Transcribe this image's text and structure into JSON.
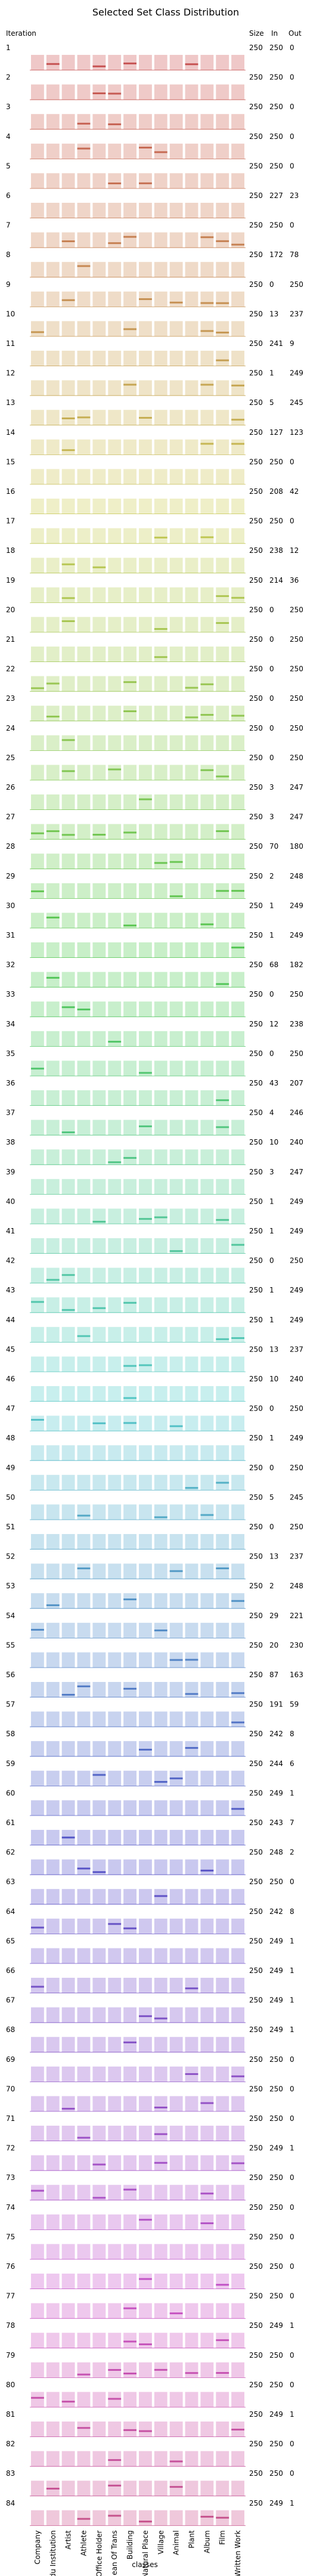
{
  "chart_data": {
    "type": "bar",
    "title": "Selected Set Class Distribution",
    "ylabel": "Iteration",
    "xlabel": "classes",
    "col_headers": [
      "Size",
      "In",
      "Out"
    ],
    "categories": [
      "Company",
      "Edu Institution",
      "Artist",
      "Athlete",
      "Office Holder",
      "Mean Of Trans",
      "Building",
      "Natural Place",
      "Village",
      "Animal",
      "Plant",
      "Album",
      "Film",
      "Written Work"
    ],
    "grid": true,
    "bar_style": "Each iteration row shows a full-height light background bar per class with a thin darker bar overlaid for the selected-set portion",
    "iterations": [
      {
        "label": "1",
        "size": 250,
        "in": 250,
        "out": 0
      },
      {
        "label": "2",
        "size": 250,
        "in": 250,
        "out": 0
      },
      {
        "label": "3",
        "size": 250,
        "in": 250,
        "out": 0
      },
      {
        "label": "4",
        "size": 250,
        "in": 250,
        "out": 0
      },
      {
        "label": "5",
        "size": 250,
        "in": 250,
        "out": 0
      },
      {
        "label": "6",
        "size": 250,
        "in": 227,
        "out": 23
      },
      {
        "label": "7",
        "size": 250,
        "in": 250,
        "out": 0
      },
      {
        "label": "8",
        "size": 250,
        "in": 172,
        "out": 78
      },
      {
        "label": "9",
        "size": 250,
        "in": 0,
        "out": 250
      },
      {
        "label": "10",
        "size": 250,
        "in": 13,
        "out": 237
      },
      {
        "label": "11",
        "size": 250,
        "in": 241,
        "out": 9
      },
      {
        "label": "12",
        "size": 250,
        "in": 1,
        "out": 249
      },
      {
        "label": "13",
        "size": 250,
        "in": 5,
        "out": 245
      },
      {
        "label": "14",
        "size": 250,
        "in": 127,
        "out": 123
      },
      {
        "label": "15",
        "size": 250,
        "in": 250,
        "out": 0
      },
      {
        "label": "16",
        "size": 250,
        "in": 208,
        "out": 42
      },
      {
        "label": "17",
        "size": 250,
        "in": 250,
        "out": 0
      },
      {
        "label": "18",
        "size": 250,
        "in": 238,
        "out": 12
      },
      {
        "label": "19",
        "size": 250,
        "in": 214,
        "out": 36
      },
      {
        "label": "20",
        "size": 250,
        "in": 0,
        "out": 250
      },
      {
        "label": "21",
        "size": 250,
        "in": 0,
        "out": 250
      },
      {
        "label": "22",
        "size": 250,
        "in": 0,
        "out": 250
      },
      {
        "label": "23",
        "size": 250,
        "in": 0,
        "out": 250
      },
      {
        "label": "24",
        "size": 250,
        "in": 0,
        "out": 250
      },
      {
        "label": "25",
        "size": 250,
        "in": 0,
        "out": 250
      },
      {
        "label": "26",
        "size": 250,
        "in": 3,
        "out": 247
      },
      {
        "label": "27",
        "size": 250,
        "in": 3,
        "out": 247
      },
      {
        "label": "28",
        "size": 250,
        "in": 70,
        "out": 180
      },
      {
        "label": "29",
        "size": 250,
        "in": 2,
        "out": 248
      },
      {
        "label": "30",
        "size": 250,
        "in": 1,
        "out": 249
      },
      {
        "label": "31",
        "size": 250,
        "in": 1,
        "out": 249
      },
      {
        "label": "32",
        "size": 250,
        "in": 68,
        "out": 182
      },
      {
        "label": "33",
        "size": 250,
        "in": 0,
        "out": 250
      },
      {
        "label": "34",
        "size": 250,
        "in": 12,
        "out": 238
      },
      {
        "label": "35",
        "size": 250,
        "in": 0,
        "out": 250
      },
      {
        "label": "36",
        "size": 250,
        "in": 43,
        "out": 207
      },
      {
        "label": "37",
        "size": 250,
        "in": 4,
        "out": 246
      },
      {
        "label": "38",
        "size": 250,
        "in": 10,
        "out": 240
      },
      {
        "label": "39",
        "size": 250,
        "in": 3,
        "out": 247
      },
      {
        "label": "40",
        "size": 250,
        "in": 1,
        "out": 249
      },
      {
        "label": "41",
        "size": 250,
        "in": 1,
        "out": 249
      },
      {
        "label": "42",
        "size": 250,
        "in": 0,
        "out": 250
      },
      {
        "label": "43",
        "size": 250,
        "in": 1,
        "out": 249
      },
      {
        "label": "44",
        "size": 250,
        "in": 1,
        "out": 249
      },
      {
        "label": "45",
        "size": 250,
        "in": 13,
        "out": 237
      },
      {
        "label": "46",
        "size": 250,
        "in": 10,
        "out": 240
      },
      {
        "label": "47",
        "size": 250,
        "in": 0,
        "out": 250
      },
      {
        "label": "48",
        "size": 250,
        "in": 1,
        "out": 249
      },
      {
        "label": "49",
        "size": 250,
        "in": 0,
        "out": 250
      },
      {
        "label": "50",
        "size": 250,
        "in": 5,
        "out": 245
      },
      {
        "label": "51",
        "size": 250,
        "in": 0,
        "out": 250
      },
      {
        "label": "52",
        "size": 250,
        "in": 13,
        "out": 237
      },
      {
        "label": "53",
        "size": 250,
        "in": 2,
        "out": 248
      },
      {
        "label": "54",
        "size": 250,
        "in": 29,
        "out": 221
      },
      {
        "label": "55",
        "size": 250,
        "in": 20,
        "out": 230
      },
      {
        "label": "56",
        "size": 250,
        "in": 87,
        "out": 163
      },
      {
        "label": "57",
        "size": 250,
        "in": 191,
        "out": 59
      },
      {
        "label": "58",
        "size": 250,
        "in": 242,
        "out": 8
      },
      {
        "label": "59",
        "size": 250,
        "in": 244,
        "out": 6
      },
      {
        "label": "60",
        "size": 250,
        "in": 249,
        "out": 1
      },
      {
        "label": "61",
        "size": 250,
        "in": 243,
        "out": 7
      },
      {
        "label": "62",
        "size": 250,
        "in": 248,
        "out": 2
      },
      {
        "label": "63",
        "size": 250,
        "in": 250,
        "out": 0
      },
      {
        "label": "64",
        "size": 250,
        "in": 242,
        "out": 8
      },
      {
        "label": "65",
        "size": 250,
        "in": 249,
        "out": 1
      },
      {
        "label": "66",
        "size": 250,
        "in": 249,
        "out": 1
      },
      {
        "label": "67",
        "size": 250,
        "in": 249,
        "out": 1
      },
      {
        "label": "68",
        "size": 250,
        "in": 249,
        "out": 1
      },
      {
        "label": "69",
        "size": 250,
        "in": 250,
        "out": 0
      },
      {
        "label": "70",
        "size": 250,
        "in": 250,
        "out": 0
      },
      {
        "label": "71",
        "size": 250,
        "in": 250,
        "out": 0
      },
      {
        "label": "72",
        "size": 250,
        "in": 249,
        "out": 1
      },
      {
        "label": "73",
        "size": 250,
        "in": 250,
        "out": 0
      },
      {
        "label": "74",
        "size": 250,
        "in": 250,
        "out": 0
      },
      {
        "label": "75",
        "size": 250,
        "in": 250,
        "out": 0
      },
      {
        "label": "76",
        "size": 250,
        "in": 250,
        "out": 0
      },
      {
        "label": "77",
        "size": 250,
        "in": 250,
        "out": 0
      },
      {
        "label": "78",
        "size": 250,
        "in": 249,
        "out": 1
      },
      {
        "label": "79",
        "size": 250,
        "in": 250,
        "out": 0
      },
      {
        "label": "80",
        "size": 250,
        "in": 250,
        "out": 0
      },
      {
        "label": "81",
        "size": 250,
        "in": 249,
        "out": 1
      },
      {
        "label": "82",
        "size": 250,
        "in": 250,
        "out": 0
      },
      {
        "label": "83",
        "size": 250,
        "in": 250,
        "out": 0
      },
      {
        "label": "84",
        "size": 250,
        "in": 249,
        "out": 1
      }
    ]
  }
}
